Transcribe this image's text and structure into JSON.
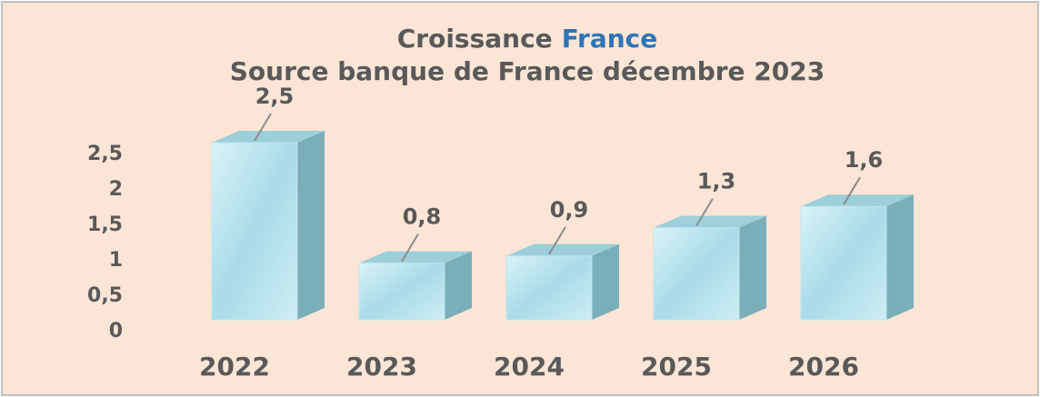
{
  "chart_data": {
    "type": "bar3d",
    "title": [
      {
        "text": "Croissance",
        "color": "#595959"
      },
      {
        "text": "France",
        "color": "#2e75b6"
      }
    ],
    "subtitle": "Source banque de France décembre 2023",
    "categories": [
      "2022",
      "2023",
      "2024",
      "2025",
      "2026"
    ],
    "values": [
      2.5,
      0.8,
      0.9,
      1.3,
      1.6
    ],
    "value_labels": [
      "2,5",
      "0,8",
      "0,9",
      "1,3",
      "1,6"
    ],
    "ylim": [
      0,
      2.5
    ],
    "yticks": [
      0,
      {
        "value": 0.5,
        "label": "0,5"
      },
      1,
      {
        "value": 1.5,
        "label": "1,5"
      },
      2,
      {
        "value": 2.5,
        "label": "2,5"
      }
    ],
    "color": "#bfe6f0"
  }
}
